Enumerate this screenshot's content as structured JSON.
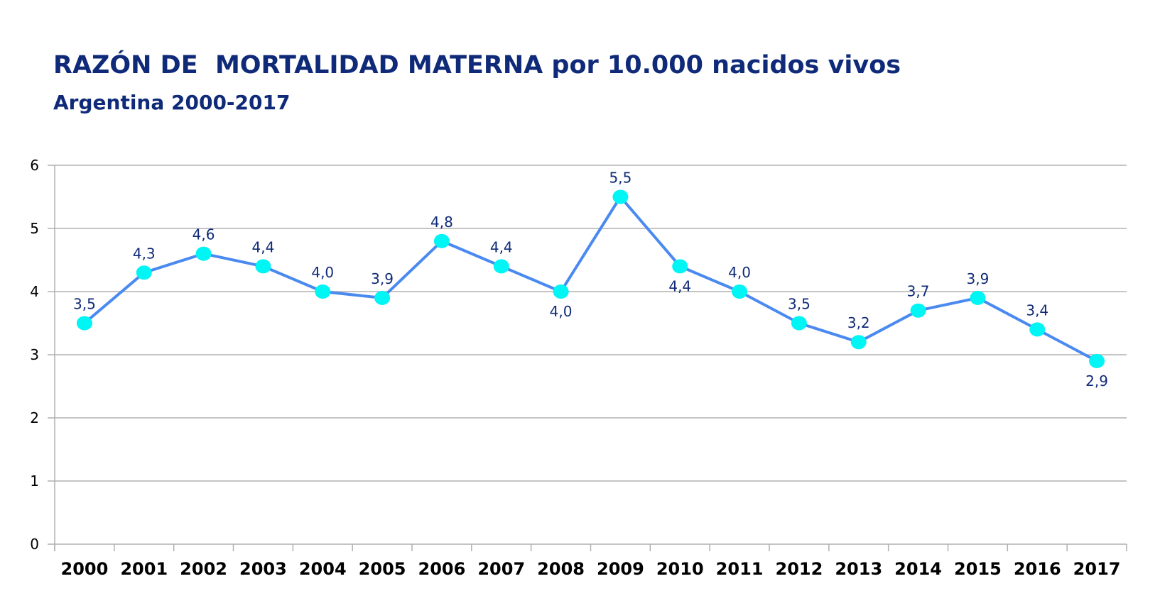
{
  "chart_data": {
    "type": "line",
    "title": "RAZÓN DE  MORTALIDAD MATERNA por 10.000 nacidos vivos",
    "subtitle": "Argentina 2000-2017",
    "categories": [
      "2000",
      "2001",
      "2002",
      "2003",
      "2004",
      "2005",
      "2006",
      "2007",
      "2008",
      "2009",
      "2010",
      "2011",
      "2012",
      "2013",
      "2014",
      "2015",
      "2016",
      "2017"
    ],
    "values": [
      3.5,
      4.3,
      4.6,
      4.4,
      4.0,
      3.9,
      4.8,
      4.4,
      4.0,
      5.5,
      4.4,
      4.0,
      3.5,
      3.2,
      3.7,
      3.9,
      3.4,
      2.9
    ],
    "data_labels": [
      "3,5",
      "4,3",
      "4,6",
      "4,4",
      "4,0",
      "3,9",
      "4,8",
      "4,4",
      "4,0",
      "5,5",
      "4,4",
      "4,0",
      "3,5",
      "3,2",
      "3,7",
      "3,9",
      "3,4",
      "2,9"
    ],
    "label_below": [
      false,
      false,
      false,
      false,
      false,
      false,
      false,
      false,
      true,
      false,
      true,
      false,
      false,
      false,
      false,
      false,
      false,
      true
    ],
    "yticks": [
      "0",
      "1",
      "2",
      "3",
      "4",
      "5",
      "6"
    ],
    "ylim": [
      0,
      6
    ],
    "grid": true,
    "legend": "none",
    "colors": {
      "line": "#4a8af0",
      "marker": "#00f5f5",
      "label": "#0f2a78",
      "grid": "#b0b0b0"
    }
  }
}
